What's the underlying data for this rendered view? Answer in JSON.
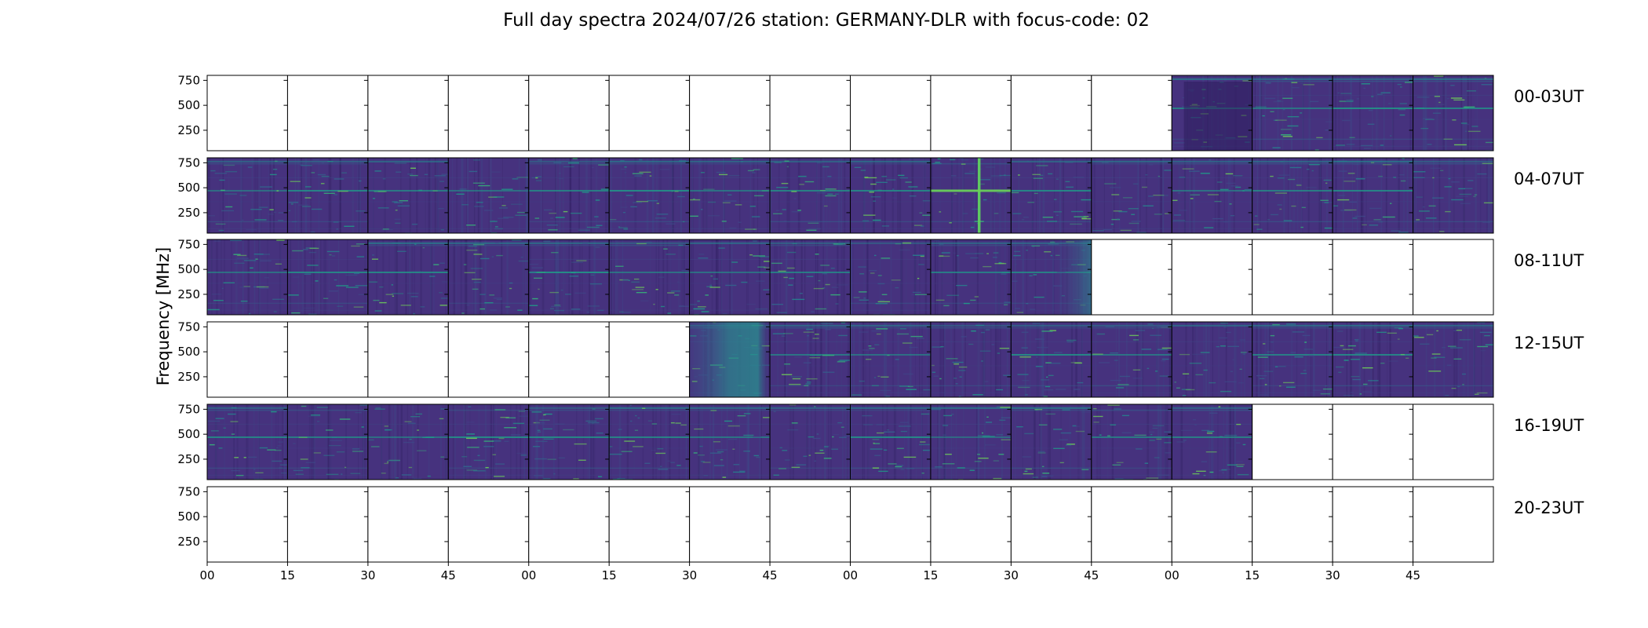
{
  "chart_data": {
    "type": "heatmap",
    "title": "Full day spectra 2024/07/26 station: GERMANY-DLR with focus-code: 02",
    "ylabel": "Frequency [MHz]",
    "xlabel": "",
    "y_ticks": [
      250,
      500,
      750
    ],
    "ylim": [
      45,
      800
    ],
    "x_ticks": [
      "00",
      "15",
      "30",
      "45",
      "00",
      "15",
      "30",
      "45",
      "00",
      "15",
      "30",
      "45",
      "00",
      "15",
      "30",
      "45"
    ],
    "panels_per_row": 16,
    "colormap": "viridis",
    "rows": [
      {
        "label": "00-03UT",
        "has_data": [
          0,
          0,
          0,
          0,
          0,
          0,
          0,
          0,
          0,
          0,
          0,
          0,
          1,
          1,
          1,
          1
        ]
      },
      {
        "label": "04-07UT",
        "has_data": [
          1,
          1,
          1,
          1,
          1,
          1,
          1,
          1,
          1,
          1,
          1,
          1,
          1,
          1,
          1,
          1
        ]
      },
      {
        "label": "08-11UT",
        "has_data": [
          1,
          1,
          1,
          1,
          1,
          1,
          1,
          1,
          1,
          1,
          1,
          0,
          0,
          0,
          0,
          0
        ]
      },
      {
        "label": "12-15UT",
        "has_data": [
          0,
          0,
          0,
          0,
          0,
          0,
          1,
          1,
          1,
          1,
          1,
          1,
          1,
          1,
          1,
          1
        ]
      },
      {
        "label": "16-19UT",
        "has_data": [
          1,
          1,
          1,
          1,
          1,
          1,
          1,
          1,
          1,
          1,
          1,
          1,
          1,
          0,
          0,
          0
        ]
      },
      {
        "label": "20-23UT",
        "has_data": [
          0,
          0,
          0,
          0,
          0,
          0,
          0,
          0,
          0,
          0,
          0,
          0,
          0,
          0,
          0,
          0
        ]
      }
    ]
  }
}
